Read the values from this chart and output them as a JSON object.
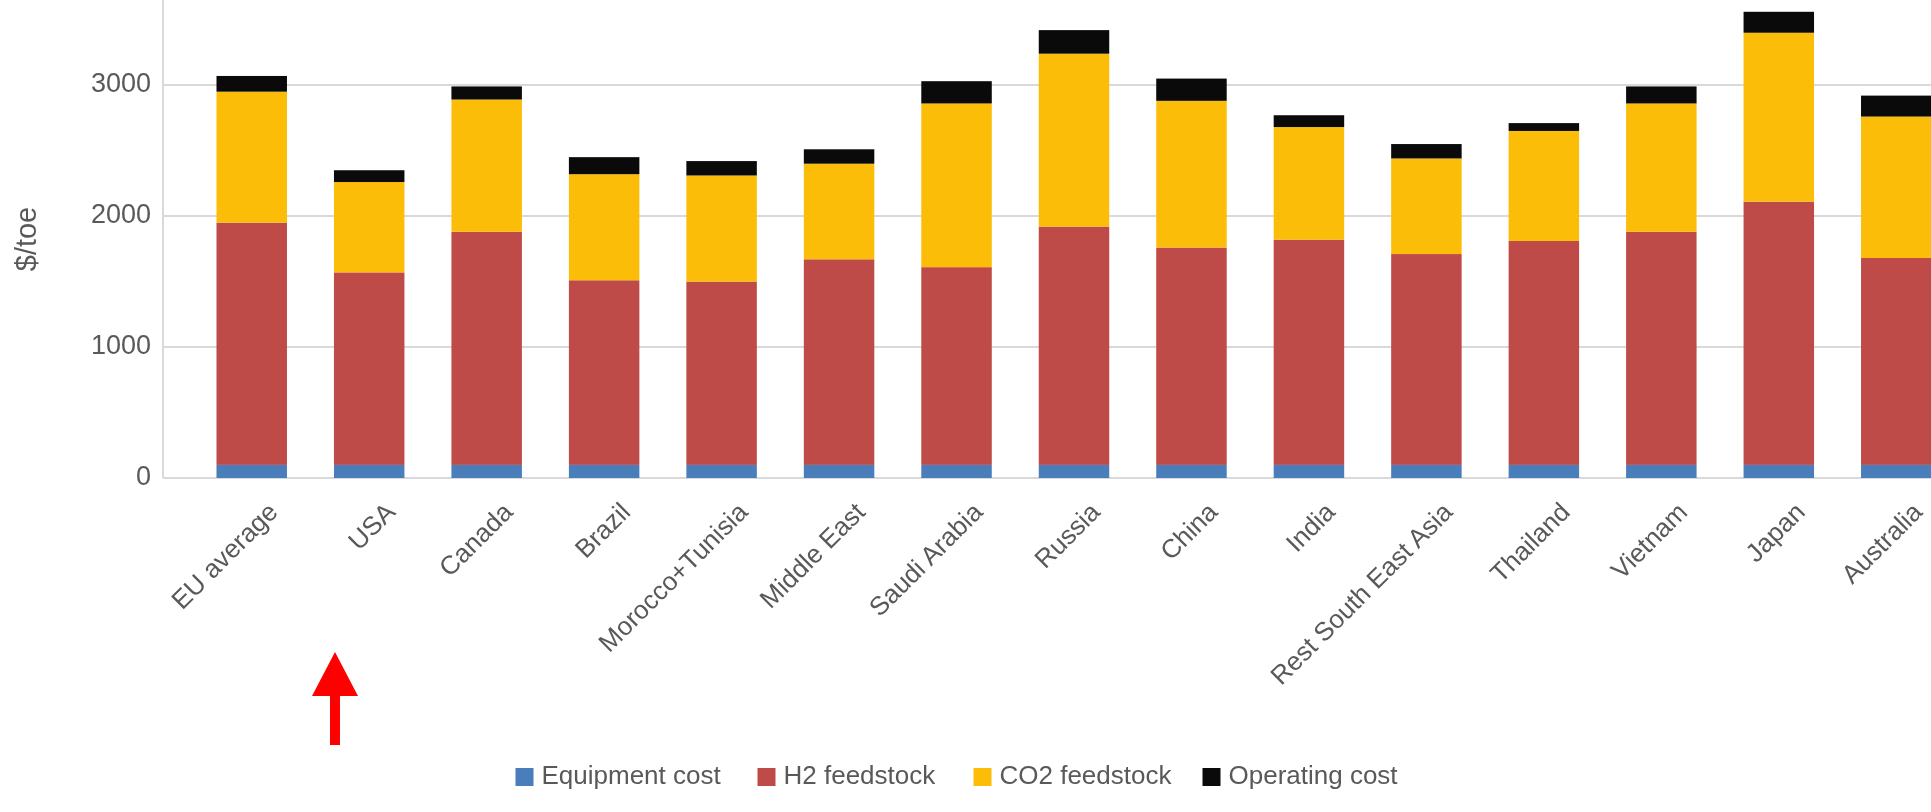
{
  "chart_data": {
    "type": "bar",
    "stacked": true,
    "ylabel": "$/toe",
    "categories": [
      "EU average",
      "USA",
      "Canada",
      "Brazil",
      "Morocco+Tunisia",
      "Middle East",
      "Saudi Arabia",
      "Russia",
      "China",
      "India",
      "Rest South East Asia",
      "Thailand",
      "Vietnam",
      "Japan",
      "Australia"
    ],
    "series": [
      {
        "name": "Equipment cost",
        "color": "#4a7ebb",
        "values": [
          100,
          100,
          100,
          100,
          100,
          100,
          100,
          100,
          100,
          100,
          100,
          100,
          100,
          100,
          100
        ]
      },
      {
        "name": "H2 feedstock",
        "color": "#be4b48",
        "values": [
          1850,
          1470,
          1780,
          1410,
          1400,
          1570,
          1510,
          1820,
          1660,
          1720,
          1610,
          1710,
          1780,
          2010,
          1580
        ]
      },
      {
        "name": "CO2 feedstock",
        "color": "#fbbd07",
        "values": [
          1000,
          690,
          1010,
          810,
          810,
          730,
          1250,
          1320,
          1120,
          860,
          730,
          840,
          980,
          1290,
          1080
        ]
      },
      {
        "name": "Operating cost",
        "color": "#0a0a0a",
        "values": [
          120,
          90,
          100,
          130,
          110,
          110,
          170,
          180,
          170,
          90,
          110,
          60,
          130,
          160,
          160
        ]
      }
    ],
    "ylim": [
      0,
      3650
    ],
    "yticks": [
      0,
      1000,
      2000,
      3000
    ],
    "grid": "y",
    "legend": "bottom"
  }
}
